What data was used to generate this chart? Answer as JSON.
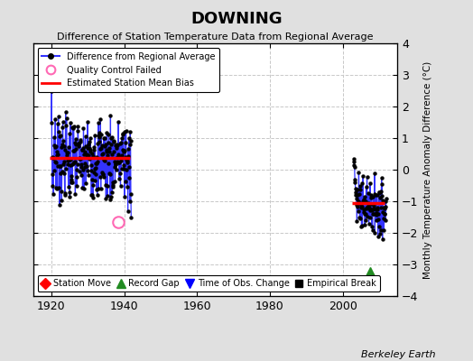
{
  "title": "DOWNING",
  "subtitle": "Difference of Station Temperature Data from Regional Average",
  "ylabel": "Monthly Temperature Anomaly Difference (°C)",
  "xlim": [
    1915,
    2015
  ],
  "ylim": [
    -4,
    4
  ],
  "yticks": [
    -4,
    -3,
    -2,
    -1,
    0,
    1,
    2,
    3,
    4
  ],
  "xticks": [
    1920,
    1940,
    1960,
    1980,
    2000
  ],
  "bg_color": "#e0e0e0",
  "plot_bg_color": "#ffffff",
  "grid_color": "#c8c8c8",
  "segment1_start": 1919.5,
  "segment1_end": 1941.5,
  "segment1_bias": 0.38,
  "segment2_start": 2002.5,
  "segment2_end": 2011.5,
  "segment2_bias": -1.05,
  "qc_fail_x": 1938.5,
  "qc_fail_y": -1.65,
  "record_gap_x": 2007.5,
  "record_gap_y": -3.25,
  "watermark": "Berkeley Earth",
  "line_color": "#3333ff",
  "bias_color": "#ff0000",
  "qc_color": "#ff69b4",
  "record_gap_color": "#228B22",
  "seg1_years_start": 1920,
  "seg1_years_end": 1942,
  "seg2_years_start": 2003,
  "seg2_years_end": 2012
}
